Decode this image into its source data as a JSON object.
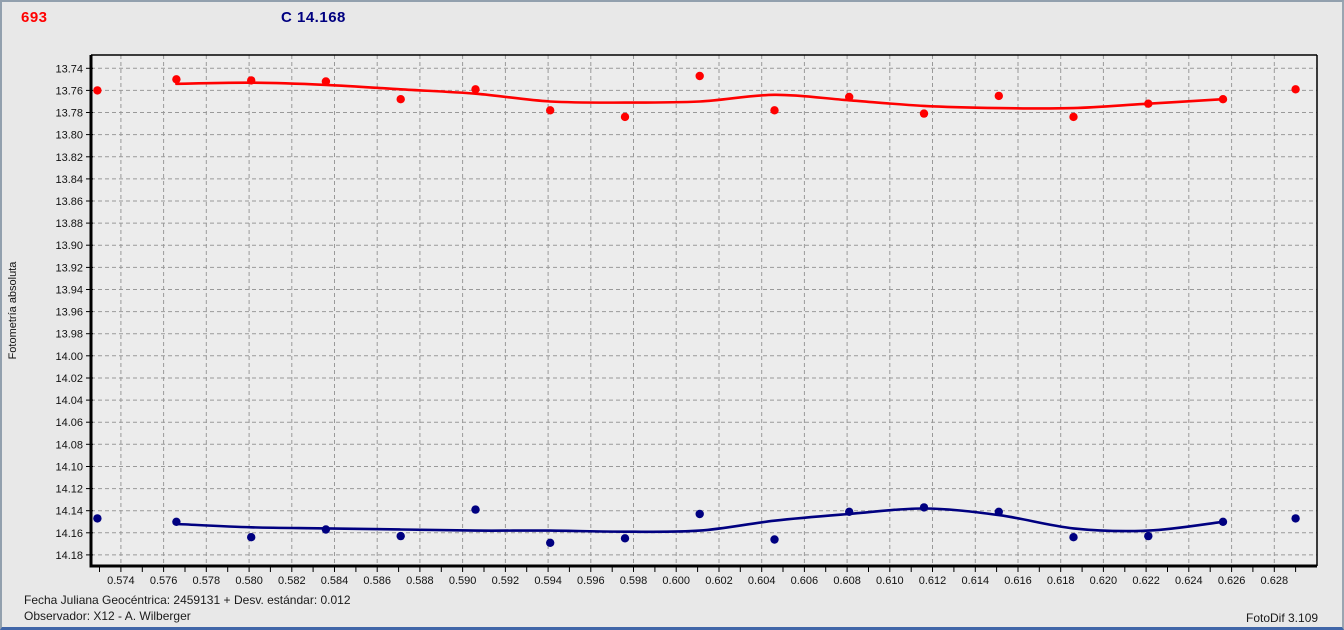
{
  "header": {
    "object_number": "693",
    "comparison_label": "C 14.168"
  },
  "footer": {
    "julian_date_label": "Fecha Juliana Geocéntrica: 2459131 +",
    "std_dev_label": "Desv. estándar: 0.012",
    "observer_label": "Observador: X12 - A. Wilberger",
    "app_version": "FotoDif 3.109"
  },
  "colors": {
    "page_bg": "#e8e8e8",
    "plot_bg": "#ececec",
    "grid": "#999999",
    "axis": "#000000",
    "tick_text": "#111111",
    "red_series": "#ff0000",
    "blue_series": "#000080",
    "header_red": "#ff0000",
    "header_navy": "#000080"
  },
  "chart_data": {
    "type": "scatter",
    "title": "",
    "xlabel": "",
    "ylabel": "Fotometría absoluta",
    "grid": true,
    "legend": "none",
    "y_axis_note": "magnitude axis, increases downward",
    "xlim": [
      0.5726,
      0.63
    ],
    "ylim": [
      13.728,
      14.19
    ],
    "x_minor_tick_step": 0.001,
    "x_tick_labels": [
      "0.574",
      "0.576",
      "0.578",
      "0.580",
      "0.582",
      "0.584",
      "0.586",
      "0.588",
      "0.590",
      "0.592",
      "0.594",
      "0.596",
      "0.598",
      "0.600",
      "0.602",
      "0.604",
      "0.606",
      "0.608",
      "0.610",
      "0.612",
      "0.614",
      "0.616",
      "0.618",
      "0.620",
      "0.622",
      "0.624",
      "0.626",
      "0.628"
    ],
    "y_tick_labels": [
      "13.74",
      "13.76",
      "13.78",
      "13.80",
      "13.82",
      "13.84",
      "13.86",
      "13.88",
      "13.90",
      "13.92",
      "13.94",
      "13.96",
      "13.98",
      "14.00",
      "14.02",
      "14.04",
      "14.06",
      "14.08",
      "14.10",
      "14.12",
      "14.14",
      "14.16",
      "14.18"
    ],
    "series": [
      {
        "name": "variable_693",
        "color": "#ff0000",
        "points": [
          [
            0.5729,
            13.76
          ],
          [
            0.5766,
            13.75
          ],
          [
            0.5801,
            13.751
          ],
          [
            0.5836,
            13.752
          ],
          [
            0.5871,
            13.768
          ],
          [
            0.5906,
            13.759
          ],
          [
            0.5941,
            13.778
          ],
          [
            0.5976,
            13.784
          ],
          [
            0.6011,
            13.747
          ],
          [
            0.6046,
            13.778
          ],
          [
            0.6081,
            13.766
          ],
          [
            0.6116,
            13.781
          ],
          [
            0.6151,
            13.765
          ],
          [
            0.6186,
            13.784
          ],
          [
            0.6221,
            13.772
          ],
          [
            0.6256,
            13.768
          ],
          [
            0.629,
            13.759
          ]
        ],
        "smooth_line": [
          [
            0.5766,
            13.754
          ],
          [
            0.5801,
            13.753
          ],
          [
            0.5836,
            13.755
          ],
          [
            0.5871,
            13.759
          ],
          [
            0.5906,
            13.763
          ],
          [
            0.5941,
            13.77
          ],
          [
            0.5976,
            13.771
          ],
          [
            0.6011,
            13.77
          ],
          [
            0.6046,
            13.764
          ],
          [
            0.6081,
            13.769
          ],
          [
            0.6116,
            13.774
          ],
          [
            0.6151,
            13.776
          ],
          [
            0.6186,
            13.776
          ],
          [
            0.6221,
            13.772
          ],
          [
            0.6256,
            13.768
          ]
        ]
      },
      {
        "name": "comparison_C",
        "color": "#000080",
        "points": [
          [
            0.5729,
            14.147
          ],
          [
            0.5766,
            14.15
          ],
          [
            0.5801,
            14.164
          ],
          [
            0.5836,
            14.157
          ],
          [
            0.5871,
            14.163
          ],
          [
            0.5906,
            14.139
          ],
          [
            0.5941,
            14.169
          ],
          [
            0.5976,
            14.165
          ],
          [
            0.6011,
            14.143
          ],
          [
            0.6046,
            14.166
          ],
          [
            0.6081,
            14.141
          ],
          [
            0.6116,
            14.137
          ],
          [
            0.6151,
            14.141
          ],
          [
            0.6186,
            14.164
          ],
          [
            0.6221,
            14.163
          ],
          [
            0.6256,
            14.15
          ],
          [
            0.629,
            14.147
          ]
        ],
        "smooth_line": [
          [
            0.5766,
            14.152
          ],
          [
            0.5801,
            14.155
          ],
          [
            0.5836,
            14.156
          ],
          [
            0.5871,
            14.157
          ],
          [
            0.5906,
            14.158
          ],
          [
            0.5941,
            14.158
          ],
          [
            0.5976,
            14.159
          ],
          [
            0.6011,
            14.158
          ],
          [
            0.6046,
            14.149
          ],
          [
            0.6081,
            14.143
          ],
          [
            0.6116,
            14.138
          ],
          [
            0.6151,
            14.144
          ],
          [
            0.6186,
            14.156
          ],
          [
            0.6221,
            14.158
          ],
          [
            0.6256,
            14.15
          ]
        ]
      }
    ]
  }
}
